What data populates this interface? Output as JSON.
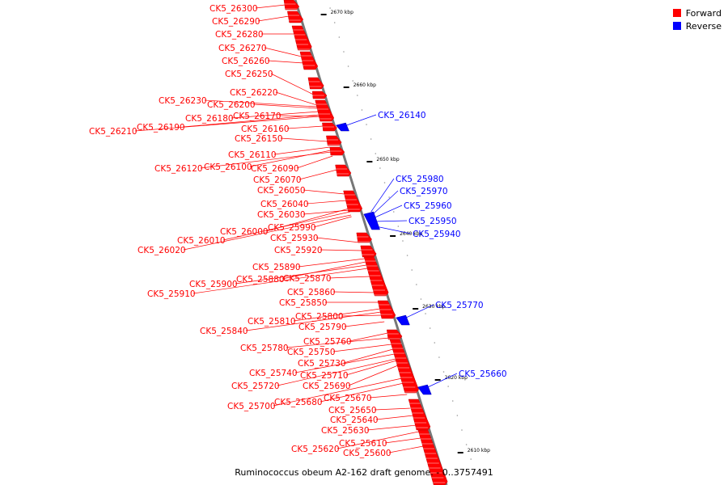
{
  "legend": {
    "forward_label": "Forward",
    "reverse_label": "Reverse",
    "forward_color": "#ff0000",
    "reverse_color": "#0000ff"
  },
  "caption": "Ruminococcus obeum A2-162 draft genome. - 0..3757491",
  "ticks": [
    "2670 kbp",
    "2660 kbp",
    "2650 kbp",
    "2640 kbp",
    "2630 kbp",
    "2620 kbp",
    "2610 kbp"
  ],
  "genes": {
    "forward": [
      "CK5_26300",
      "CK5_26290",
      "CK5_26280",
      "CK5_26270",
      "CK5_26260",
      "CK5_26250",
      "CK5_26220",
      "CK5_26230",
      "CK5_26200",
      "CK5_26180",
      "CK5_26170",
      "CK5_26190",
      "CK5_26210",
      "CK5_26160",
      "CK5_26150",
      "CK5_26110",
      "CK5_26120",
      "CK5_26100",
      "CK5_26090",
      "CK5_26070",
      "CK5_26050",
      "CK5_26040",
      "CK5_26030",
      "CK5_26000",
      "CK5_25990",
      "CK5_26010",
      "CK5_25930",
      "CK5_26020",
      "CK5_25920",
      "CK5_25890",
      "CK5_25880",
      "CK5_25870",
      "CK5_25900",
      "CK5_25910",
      "CK5_25860",
      "CK5_25850",
      "CK5_25800",
      "CK5_25810",
      "CK5_25790",
      "CK5_25840",
      "CK5_25760",
      "CK5_25780",
      "CK5_25750",
      "CK5_25730",
      "CK5_25740",
      "CK5_25710",
      "CK5_25720",
      "CK5_25690",
      "CK5_25670",
      "CK5_25680",
      "CK5_25700",
      "CK5_25650",
      "CK5_25640",
      "CK5_25630",
      "CK5_25610",
      "CK5_25620",
      "CK5_25600"
    ],
    "reverse": [
      "CK5_26140",
      "CK5_25980",
      "CK5_25970",
      "CK5_25960",
      "CK5_25950",
      "CK5_25940",
      "CK5_25770",
      "CK5_25660"
    ]
  }
}
